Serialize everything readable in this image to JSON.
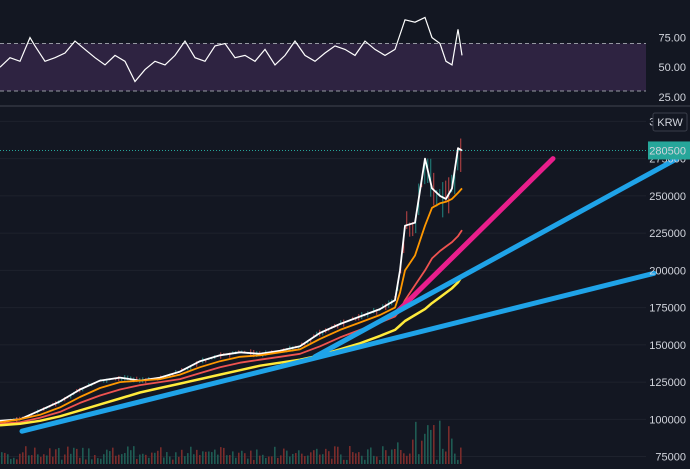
{
  "chart_data": [
    {
      "type": "line",
      "panel": "oscillator",
      "series": [
        {
          "color": "#ffffff"
        }
      ],
      "y_ticks": [
        75,
        50,
        25
      ],
      "ylim": [
        19,
        105
      ],
      "band": {
        "upper": 70,
        "lower": 30,
        "fill": "#2e2341"
      },
      "x": [
        0,
        10,
        20,
        30,
        35,
        45,
        55,
        65,
        75,
        85,
        95,
        105,
        115,
        125,
        135,
        145,
        155,
        165,
        175,
        185,
        195,
        205,
        215,
        225,
        235,
        245,
        255,
        265,
        275,
        285,
        295,
        305,
        315,
        325,
        335,
        345,
        355,
        365,
        375,
        385,
        395,
        405,
        415,
        425,
        432,
        440,
        446,
        452,
        458,
        462
      ],
      "values": [
        50,
        58,
        55,
        75,
        68,
        55,
        58,
        62,
        72,
        65,
        58,
        52,
        60,
        55,
        38,
        48,
        55,
        52,
        60,
        72,
        58,
        55,
        68,
        70,
        58,
        60,
        55,
        65,
        52,
        60,
        72,
        60,
        55,
        62,
        68,
        65,
        60,
        72,
        65,
        60,
        65,
        90,
        88,
        92,
        75,
        70,
        55,
        52,
        82,
        60
      ]
    },
    {
      "type": "line",
      "panel": "price",
      "currency_label": "KRW",
      "y_ticks": [
        300000,
        275000,
        250000,
        225000,
        200000,
        175000,
        150000,
        125000,
        100000,
        75000
      ],
      "ylim": [
        70000,
        309000
      ],
      "last_price": {
        "label": "280500",
        "value": 280500,
        "color": "#26a69a"
      },
      "x": [
        0,
        20,
        40,
        60,
        80,
        100,
        120,
        140,
        160,
        180,
        200,
        220,
        240,
        260,
        280,
        300,
        320,
        340,
        360,
        380,
        395,
        400,
        405,
        415,
        425,
        432,
        440,
        446,
        452,
        458,
        462
      ],
      "series": [
        {
          "color": "#ffffff",
          "values": [
            99000,
            100000,
            106000,
            112000,
            120000,
            126000,
            128000,
            126000,
            128000,
            132000,
            139000,
            143000,
            145000,
            144000,
            146000,
            149000,
            158000,
            164000,
            169000,
            174000,
            180000,
            200000,
            230000,
            232000,
            275000,
            255000,
            250000,
            248000,
            255000,
            282000,
            280500
          ]
        },
        {
          "color": "#ff9800",
          "values": [
            98000,
            100000,
            103000,
            108000,
            115000,
            121000,
            125000,
            126000,
            127000,
            130000,
            135000,
            139000,
            142000,
            143000,
            145000,
            147000,
            154000,
            160000,
            165000,
            170000,
            175000,
            185000,
            200000,
            210000,
            230000,
            242000,
            245000,
            246000,
            248000,
            252000,
            255000
          ]
        },
        {
          "color": "#ef5350",
          "values": [
            97000,
            98000,
            101000,
            105000,
            111000,
            116000,
            120000,
            123000,
            125000,
            127000,
            131000,
            135000,
            138000,
            140000,
            142000,
            144000,
            149000,
            155000,
            160000,
            165000,
            169000,
            173000,
            180000,
            190000,
            200000,
            208000,
            213000,
            216000,
            219000,
            223000,
            227000
          ]
        },
        {
          "color": "#ffeb3b",
          "values": [
            96000,
            97000,
            99000,
            102000,
            106000,
            110000,
            114000,
            118000,
            121000,
            124000,
            127000,
            130000,
            133000,
            136000,
            138000,
            140000,
            143000,
            147000,
            151000,
            156000,
            160000,
            163000,
            166000,
            170000,
            174000,
            178000,
            182000,
            185000,
            188000,
            192000,
            196000
          ]
        }
      ],
      "trendlines": [
        {
          "color": "#e91e8c",
          "from": [
            397,
            172000
          ],
          "to": [
            553,
            275000
          ]
        },
        {
          "color": "#1fa3e8",
          "from": [
            315,
            142000
          ],
          "to": [
            677,
            275000
          ]
        },
        {
          "color": "#1fa3e8",
          "from": [
            22,
            92000
          ],
          "to": [
            654,
            198000
          ]
        }
      ]
    }
  ]
}
